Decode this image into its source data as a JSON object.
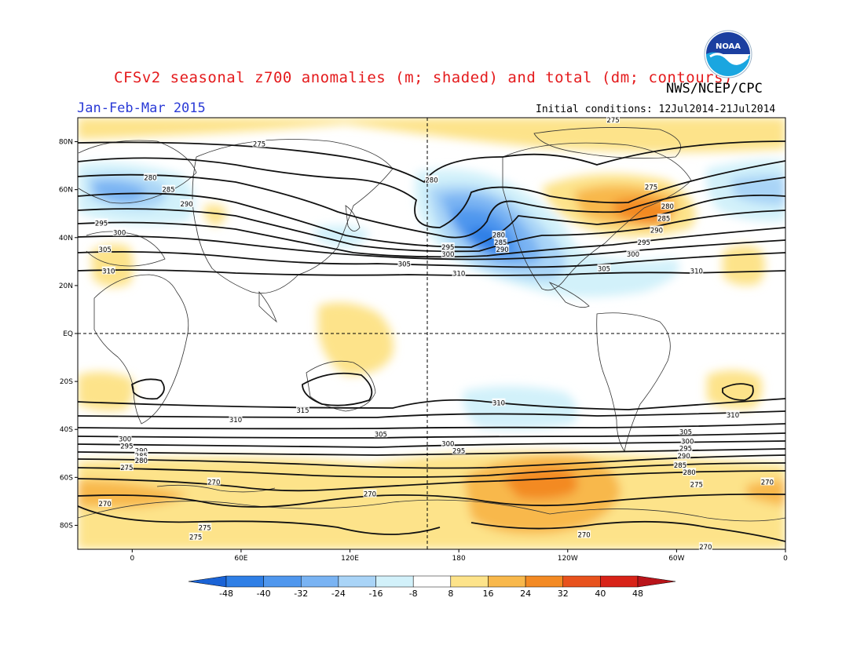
{
  "header": {
    "title": "CFSv2 seasonal z700 anomalies (m; shaded) and total (dm; contours)",
    "agency": "NWS/NCEP/CPC",
    "period": "Jan-Feb-Mar 2015",
    "initial_conditions": "Initial conditions: 12Jul2014-21Jul2014",
    "logo_text": "NOAA",
    "logo_icon": "noaa-logo-icon"
  },
  "axes": {
    "lat_labels": [
      "80N",
      "60N",
      "40N",
      "20N",
      "EQ",
      "20S",
      "40S",
      "60S",
      "80S"
    ],
    "lat_values": [
      80,
      60,
      40,
      20,
      0,
      -20,
      -40,
      -60,
      -80
    ],
    "lon_labels": [
      "0",
      "60E",
      "120E",
      "180",
      "120W",
      "60W",
      "0"
    ],
    "lon_values": [
      0,
      60,
      120,
      180,
      240,
      300,
      360
    ],
    "lon_range": [
      -30,
      360
    ],
    "lat_range": [
      -90,
      90
    ],
    "dashed_reference_lines": [
      "EQ",
      "180"
    ]
  },
  "colorbar": {
    "labels": [
      "-48",
      "-40",
      "-32",
      "-24",
      "-16",
      "-8",
      "8",
      "16",
      "24",
      "32",
      "40",
      "48"
    ],
    "colors": [
      "#1a63d6",
      "#2f7fe6",
      "#4f97ee",
      "#79b3f3",
      "#a9d4f7",
      "#d2f1fa",
      "#ffffff",
      "#fde38a",
      "#f8b84c",
      "#f38a24",
      "#e8521d",
      "#d82318",
      "#b9141a"
    ]
  },
  "contour_labels": [
    {
      "text": "275",
      "lon": 70,
      "lat": 79
    },
    {
      "text": "275",
      "lon": 265,
      "lat": 89
    },
    {
      "text": "280",
      "lon": 10,
      "lat": 65
    },
    {
      "text": "280",
      "lon": 165,
      "lat": 64
    },
    {
      "text": "285",
      "lon": 20,
      "lat": 60
    },
    {
      "text": "290",
      "lon": 30,
      "lat": 54
    },
    {
      "text": "295",
      "lon": -17,
      "lat": 46
    },
    {
      "text": "300",
      "lon": -7,
      "lat": 42
    },
    {
      "text": "305",
      "lon": -15,
      "lat": 35
    },
    {
      "text": "310",
      "lon": -13,
      "lat": 26
    },
    {
      "text": "295",
      "lon": 174,
      "lat": 36
    },
    {
      "text": "300",
      "lon": 174,
      "lat": 33
    },
    {
      "text": "305",
      "lon": 150,
      "lat": 29
    },
    {
      "text": "310",
      "lon": 180,
      "lat": 25
    },
    {
      "text": "280",
      "lon": 202,
      "lat": 41
    },
    {
      "text": "285",
      "lon": 203,
      "lat": 38
    },
    {
      "text": "290",
      "lon": 204,
      "lat": 35
    },
    {
      "text": "275",
      "lon": 286,
      "lat": 61
    },
    {
      "text": "280",
      "lon": 295,
      "lat": 53
    },
    {
      "text": "285",
      "lon": 293,
      "lat": 48
    },
    {
      "text": "290",
      "lon": 289,
      "lat": 43
    },
    {
      "text": "295",
      "lon": 282,
      "lat": 38
    },
    {
      "text": "300",
      "lon": 276,
      "lat": 33
    },
    {
      "text": "305",
      "lon": 260,
      "lat": 27
    },
    {
      "text": "310",
      "lon": 311,
      "lat": 26
    },
    {
      "text": "310",
      "lon": 57,
      "lat": -36
    },
    {
      "text": "315",
      "lon": 94,
      "lat": -32
    },
    {
      "text": "310",
      "lon": 202,
      "lat": -29
    },
    {
      "text": "310",
      "lon": 331,
      "lat": -34
    },
    {
      "text": "305",
      "lon": 137,
      "lat": -42
    },
    {
      "text": "300",
      "lon": 174,
      "lat": -46
    },
    {
      "text": "295",
      "lon": 180,
      "lat": -49
    },
    {
      "text": "305",
      "lon": 305,
      "lat": -41
    },
    {
      "text": "300",
      "lon": 306,
      "lat": -45
    },
    {
      "text": "295",
      "lon": 305,
      "lat": -48
    },
    {
      "text": "290",
      "lon": 304,
      "lat": -51
    },
    {
      "text": "285",
      "lon": 302,
      "lat": -55
    },
    {
      "text": "280",
      "lon": 307,
      "lat": -58
    },
    {
      "text": "300",
      "lon": -4,
      "lat": -44
    },
    {
      "text": "295",
      "lon": -3,
      "lat": -47
    },
    {
      "text": "290",
      "lon": 5,
      "lat": -49
    },
    {
      "text": "285",
      "lon": 5,
      "lat": -51
    },
    {
      "text": "280",
      "lon": 5,
      "lat": -53
    },
    {
      "text": "275",
      "lon": -3,
      "lat": -56
    },
    {
      "text": "270",
      "lon": 45,
      "lat": -62
    },
    {
      "text": "270",
      "lon": -15,
      "lat": -71
    },
    {
      "text": "270",
      "lon": 131,
      "lat": -67
    },
    {
      "text": "275",
      "lon": 311,
      "lat": -63
    },
    {
      "text": "270",
      "lon": 350,
      "lat": -62
    },
    {
      "text": "275",
      "lon": 40,
      "lat": -81
    },
    {
      "text": "275",
      "lon": 35,
      "lat": -85
    },
    {
      "text": "270",
      "lon": 249,
      "lat": -84
    },
    {
      "text": "270",
      "lon": 316,
      "lat": -89
    }
  ]
}
